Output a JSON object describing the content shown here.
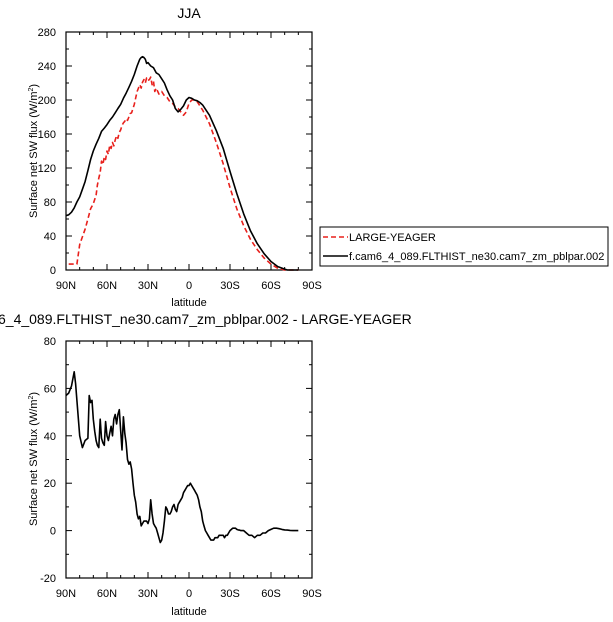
{
  "chart_data": [
    {
      "type": "line",
      "title": "JJA",
      "xlabel": "latitude",
      "ylabel": "Surface net SW flux (W/m",
      "ylabel_sup": "2",
      "ylabel_close": ")",
      "xlim": [
        90,
        -90
      ],
      "ylim": [
        0,
        280
      ],
      "xticks": [
        90,
        60,
        30,
        0,
        -30,
        -60,
        -90
      ],
      "xtick_labels": [
        "90N",
        "60N",
        "30N",
        "0",
        "30S",
        "60S",
        "90S"
      ],
      "yticks": [
        0,
        40,
        80,
        120,
        160,
        200,
        240,
        280
      ],
      "ytick_labels": [
        "0",
        "40",
        "80",
        "120",
        "160",
        "200",
        "240",
        "280"
      ],
      "legend_position": "right",
      "series": [
        {
          "name": "LARGE-YEAGER",
          "color": "#e8201c",
          "dash": true,
          "x": [
            88,
            82,
            80,
            76,
            74,
            72,
            70,
            68,
            67,
            66,
            65,
            64,
            63,
            62,
            61,
            60,
            59,
            58,
            57,
            56,
            55,
            54,
            53,
            52,
            51,
            50,
            49,
            48,
            47,
            46,
            45,
            44,
            43,
            42,
            41,
            40,
            38,
            36,
            35,
            34,
            33,
            32,
            31,
            30,
            29,
            28,
            27,
            26,
            25,
            24,
            22,
            20,
            18,
            16,
            14,
            12,
            10,
            8,
            6,
            4,
            2,
            0,
            -2,
            -4,
            -6,
            -8,
            -10,
            -15,
            -20,
            -25,
            -30,
            -35,
            -40,
            -45,
            -50,
            -55,
            -60,
            -65,
            -70,
            -72,
            -75,
            -80
          ],
          "y": [
            7,
            7,
            30,
            48,
            60,
            72,
            78,
            88,
            100,
            108,
            115,
            128,
            124,
            133,
            130,
            140,
            136,
            147,
            143,
            150,
            146,
            153,
            158,
            155,
            162,
            165,
            170,
            173,
            175,
            178,
            176,
            180,
            184,
            185,
            190,
            195,
            210,
            218,
            214,
            221,
            224,
            220,
            226,
            223,
            224,
            227,
            218,
            222,
            210,
            214,
            207,
            210,
            205,
            203,
            198,
            196,
            192,
            190,
            186,
            182,
            186,
            196,
            200,
            200,
            198,
            193,
            188,
            172,
            150,
            125,
            97,
            72,
            52,
            36,
            24,
            14,
            7,
            2,
            0,
            0,
            0,
            0
          ]
        },
        {
          "name": "f.cam6_4_089.FLTHIST_ne30.cam7_zm_pblpar.002",
          "color": "#000000",
          "dash": false,
          "x": [
            90,
            88,
            86,
            84,
            82,
            80,
            78,
            76,
            74,
            72,
            70,
            68,
            66,
            64,
            62,
            60,
            58,
            56,
            54,
            52,
            50,
            48,
            46,
            44,
            42,
            40,
            38,
            36,
            35,
            34,
            33,
            32,
            31,
            30,
            28,
            26,
            24,
            22,
            20,
            18,
            16,
            14,
            12,
            10,
            8,
            6,
            4,
            2,
            0,
            -2,
            -4,
            -6,
            -8,
            -10,
            -15,
            -20,
            -25,
            -30,
            -35,
            -40,
            -45,
            -50,
            -55,
            -60,
            -65,
            -70,
            -72,
            -75,
            -80
          ],
          "y": [
            64,
            65,
            68,
            73,
            80,
            86,
            95,
            104,
            117,
            130,
            140,
            148,
            155,
            163,
            167,
            171,
            176,
            180,
            185,
            190,
            195,
            202,
            208,
            215,
            222,
            230,
            240,
            248,
            250,
            251,
            250,
            248,
            243,
            244,
            240,
            238,
            232,
            230,
            225,
            220,
            212,
            205,
            200,
            190,
            186,
            189,
            193,
            200,
            203,
            202,
            200,
            199,
            197,
            194,
            182,
            164,
            143,
            116,
            90,
            66,
            46,
            31,
            19,
            10,
            4,
            1,
            0,
            0,
            0
          ]
        }
      ]
    },
    {
      "type": "line",
      "title": "6_4_089.FLTHIST_ne30.cam7_zm_pblpar.002 - LARGE-YEAGER",
      "xlabel": "latitude",
      "ylabel": "Surface net SW flux (W/m",
      "ylabel_sup": "2",
      "ylabel_close": ")",
      "xlim": [
        90,
        -90
      ],
      "ylim": [
        -20,
        80
      ],
      "xticks": [
        90,
        60,
        30,
        0,
        -30,
        -60,
        -90
      ],
      "xtick_labels": [
        "90N",
        "60N",
        "30N",
        "0",
        "30S",
        "60S",
        "90S"
      ],
      "yticks": [
        -20,
        0,
        20,
        40,
        60,
        80
      ],
      "ytick_labels": [
        "-20",
        "0",
        "20",
        "40",
        "60",
        "80"
      ],
      "series": [
        {
          "color": "#000000",
          "dash": false,
          "x": [
            90,
            88,
            86,
            84,
            83,
            82,
            80,
            78,
            76,
            74,
            73,
            72,
            71,
            70,
            69,
            68,
            67,
            66,
            65,
            64,
            63,
            62,
            61,
            60,
            59,
            58,
            57,
            56,
            55,
            54,
            53,
            52,
            51,
            50,
            49,
            48,
            47,
            46,
            45,
            44,
            43,
            42,
            41,
            40,
            39,
            38,
            37,
            36,
            35,
            34,
            33,
            32,
            31,
            30,
            29,
            28,
            27,
            26,
            25,
            24,
            23,
            22,
            21,
            20,
            19,
            18,
            17,
            16,
            15,
            14,
            13,
            12,
            11,
            10,
            9,
            8,
            7,
            6,
            5,
            4,
            3,
            2,
            1,
            0,
            -1,
            -2,
            -3,
            -4,
            -5,
            -6,
            -7,
            -8,
            -9,
            -10,
            -11,
            -12,
            -13,
            -14,
            -15,
            -16,
            -17,
            -18,
            -19,
            -20,
            -21,
            -22,
            -23,
            -24,
            -25,
            -26,
            -27,
            -28,
            -29,
            -30,
            -31,
            -32,
            -33,
            -34,
            -35,
            -36,
            -37,
            -38,
            -39,
            -40,
            -42,
            -44,
            -46,
            -48,
            -50,
            -52,
            -54,
            -56,
            -58,
            -60,
            -62,
            -64,
            -66,
            -68,
            -70,
            -72,
            -74,
            -76,
            -78,
            -80
          ],
          "y": [
            57,
            58,
            61,
            67,
            62,
            55,
            40,
            35,
            38,
            39,
            57,
            54,
            55,
            47,
            42,
            38,
            36,
            35,
            47,
            39,
            37,
            36,
            46,
            40,
            38,
            41,
            44,
            40,
            47,
            49,
            45,
            49,
            51,
            42,
            34,
            48,
            41,
            37,
            30,
            28,
            29,
            26,
            20,
            15,
            12,
            7,
            5,
            6,
            2,
            3,
            4,
            4,
            4,
            3,
            5,
            13,
            7,
            3,
            2,
            1,
            -1,
            -3,
            -5,
            -4,
            -1,
            4,
            10,
            9,
            7,
            7,
            8,
            10,
            11,
            9,
            8,
            11,
            12,
            13,
            14,
            16,
            17,
            18,
            19,
            19,
            20,
            19,
            18,
            17,
            16,
            15,
            13,
            10,
            8,
            4,
            2,
            0,
            -1,
            -2,
            -3,
            -4,
            -4,
            -4,
            -3,
            -3,
            -3,
            -2,
            -2,
            -2,
            -2,
            -3,
            -2,
            -2,
            -1,
            0,
            0.5,
            1,
            1,
            1,
            0.5,
            0.3,
            0.2,
            0,
            0,
            0,
            -1,
            -2,
            -2,
            -3,
            -2,
            -2,
            -1,
            -1,
            0,
            0.5,
            1,
            1,
            0.8,
            0.5,
            0.3,
            0.2,
            0.1,
            0,
            0,
            0
          ]
        }
      ]
    }
  ]
}
